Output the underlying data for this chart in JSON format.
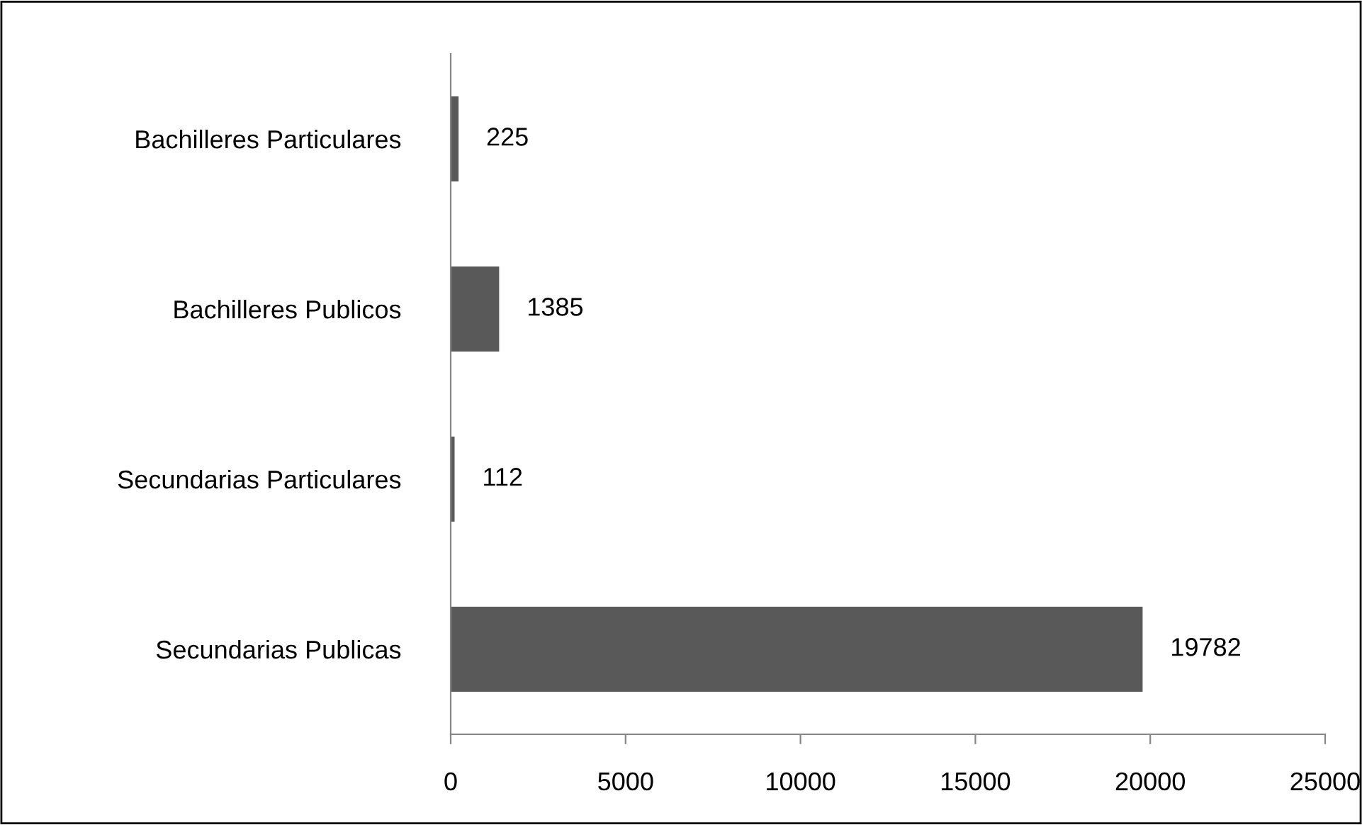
{
  "chart_data": {
    "type": "bar",
    "orientation": "horizontal",
    "categories": [
      "Bachilleres Particulares",
      "Bachilleres Publicos",
      "Secundarias Particulares",
      "Secundarias Publicas"
    ],
    "values": [
      225,
      1385,
      112,
      19782
    ],
    "color": "#595959",
    "xlim": [
      0,
      25000
    ],
    "xticks": [
      0,
      5000,
      10000,
      15000,
      20000,
      25000
    ],
    "data_labels": true,
    "grid": false,
    "legend": false
  }
}
